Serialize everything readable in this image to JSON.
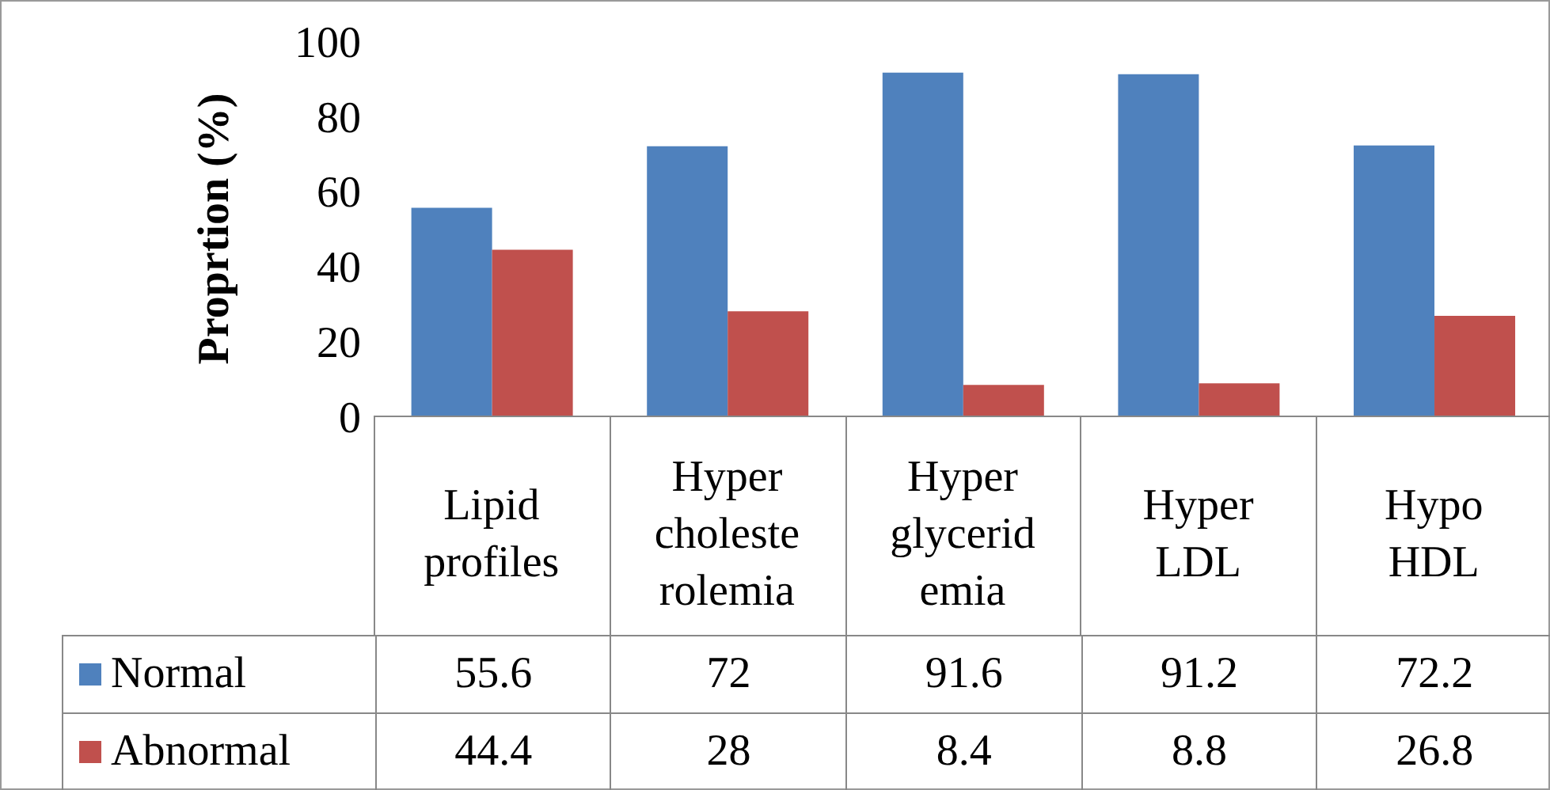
{
  "chart_data": {
    "type": "bar",
    "ylabel": "Proprtion (%)",
    "categories": [
      "Lipid profiles",
      "Hyper choleste rolemia",
      "Hyper glycerid emia",
      "Hyper LDL",
      "Hypo HDL"
    ],
    "series": [
      {
        "name": "Normal",
        "color": "#4f81bd",
        "values": [
          55.6,
          72,
          91.6,
          91.2,
          72.2
        ]
      },
      {
        "name": "Abnormal",
        "color": "#c0504d",
        "values": [
          44.4,
          28,
          8.4,
          8.8,
          26.8
        ]
      }
    ],
    "ylim": [
      0,
      100
    ],
    "yticks": [
      0,
      20,
      40,
      60,
      80,
      100
    ],
    "data_labels": true,
    "legend": "bottom left"
  }
}
